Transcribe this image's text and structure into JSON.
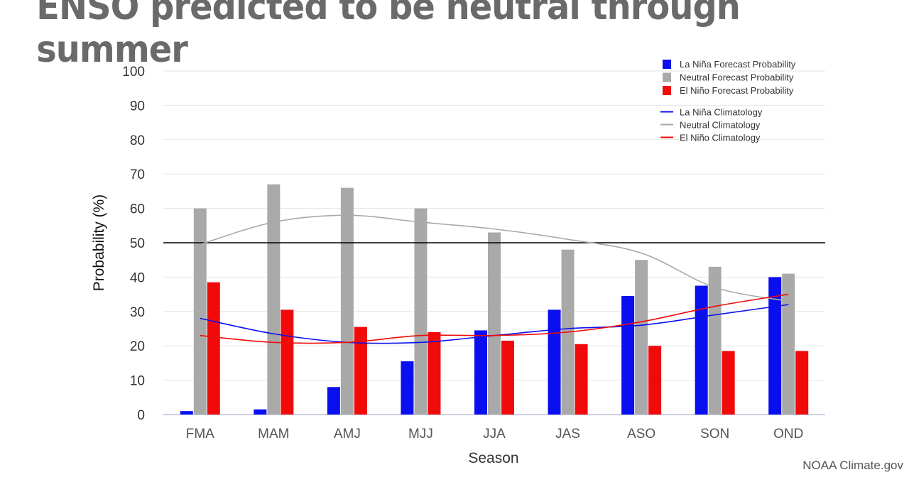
{
  "headline": "ENSO predicted to be neutral through summer",
  "credit": "NOAA Climate.gov",
  "colors": {
    "la_nina": "#0a0ff0",
    "neutral": "#a9a9a9",
    "el_nino": "#f00a0a",
    "grid": "#e6e6e6",
    "axis_text": "#333333",
    "threshold_line": "#000000"
  },
  "chart_data": {
    "type": "bar",
    "xlabel": "Season",
    "ylabel": "Probability (%)",
    "ylim": [
      0,
      100
    ],
    "yticks": [
      0,
      10,
      20,
      30,
      40,
      50,
      60,
      70,
      80,
      90,
      100
    ],
    "threshold": 50,
    "grid": true,
    "legend_position": "top-right",
    "categories": [
      "FMA",
      "MAM",
      "AMJ",
      "MJJ",
      "JJA",
      "JAS",
      "ASO",
      "SON",
      "OND"
    ],
    "series": [
      {
        "name": "La Niña Forecast Probability",
        "kind": "bar",
        "color": "#0a0ff0",
        "values": [
          1,
          1.5,
          8,
          15.5,
          24.5,
          30.5,
          34.5,
          37.5,
          40
        ]
      },
      {
        "name": "Neutral Forecast Probability",
        "kind": "bar",
        "color": "#a9a9a9",
        "values": [
          60,
          67,
          66,
          60,
          53,
          48,
          45,
          43,
          41
        ]
      },
      {
        "name": "El Niño Forecast Probability",
        "kind": "bar",
        "color": "#f00a0a",
        "values": [
          38.5,
          30.5,
          25.5,
          24,
          21.5,
          20.5,
          20,
          18.5,
          18.5
        ]
      },
      {
        "name": "La Niña Climatology",
        "kind": "line",
        "color": "#0a0ff0",
        "values": [
          28,
          23.5,
          21,
          21,
          23,
          25,
          26,
          29,
          32
        ]
      },
      {
        "name": "Neutral Climatology",
        "kind": "line",
        "color": "#a9a9a9",
        "values": [
          49.5,
          56,
          58,
          56,
          54,
          51,
          47,
          37,
          33
        ]
      },
      {
        "name": "El Niño Climatology",
        "kind": "line",
        "color": "#f00a0a",
        "values": [
          23,
          21,
          21,
          23,
          23,
          24,
          27,
          31.5,
          35
        ]
      }
    ]
  }
}
